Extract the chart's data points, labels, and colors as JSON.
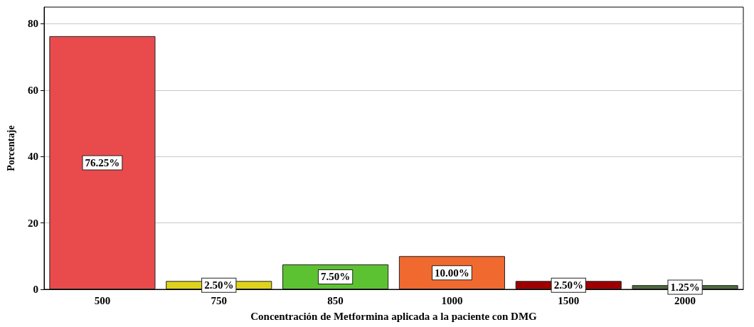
{
  "chart_data": {
    "type": "bar",
    "xlabel": "Concentración de Metformina aplicada a la paciente con DMG",
    "ylabel": "Porcentaje",
    "categories": [
      "500",
      "750",
      "850",
      "1000",
      "1500",
      "2000"
    ],
    "values": [
      76.25,
      2.5,
      7.5,
      10,
      2.5,
      1.25
    ],
    "colors": [
      "#e94b4d",
      "#dfd21c",
      "#5dc232",
      "#f06a30",
      "#9e0000",
      "#4f6a3d"
    ],
    "value_labels": [
      "76.25%",
      "2.50%",
      "7.50%",
      "10.00%",
      "2.50%",
      "1.25%"
    ],
    "ylim": [
      0,
      85
    ],
    "yticks": [
      0,
      20,
      40,
      60,
      80
    ],
    "grid": "y"
  }
}
